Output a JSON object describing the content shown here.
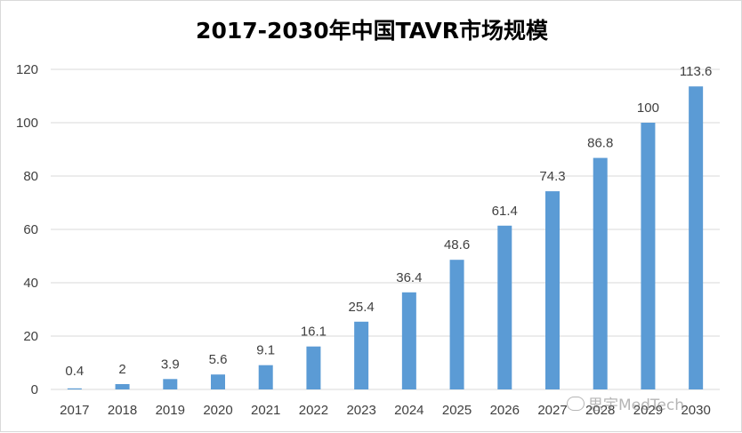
{
  "chart_data": {
    "type": "bar",
    "title": "2017-2030年中国TAVR市场规模",
    "categories": [
      "2017",
      "2018",
      "2019",
      "2020",
      "2021",
      "2022",
      "2023",
      "2024",
      "2025",
      "2026",
      "2027",
      "2028",
      "2029",
      "2030"
    ],
    "values": [
      0.4,
      2,
      3.9,
      5.6,
      9.1,
      16.1,
      25.4,
      36.4,
      48.6,
      61.4,
      74.3,
      86.8,
      100,
      113.6
    ],
    "value_labels": [
      "0.4",
      "2",
      "3.9",
      "5.6",
      "9.1",
      "16.1",
      "25.4",
      "36.4",
      "48.6",
      "61.4",
      "74.3",
      "86.8",
      "100",
      "113.6"
    ],
    "y_ticks": [
      0,
      20,
      40,
      60,
      80,
      100,
      120
    ],
    "ylim": [
      0,
      120
    ],
    "xlabel": "",
    "ylabel": "",
    "grid": true,
    "bar_color": "#5B9BD5",
    "grid_color": "#d9d9d9"
  },
  "watermark": {
    "text": "思宇MedTech",
    "icon": "wechat-icon"
  }
}
